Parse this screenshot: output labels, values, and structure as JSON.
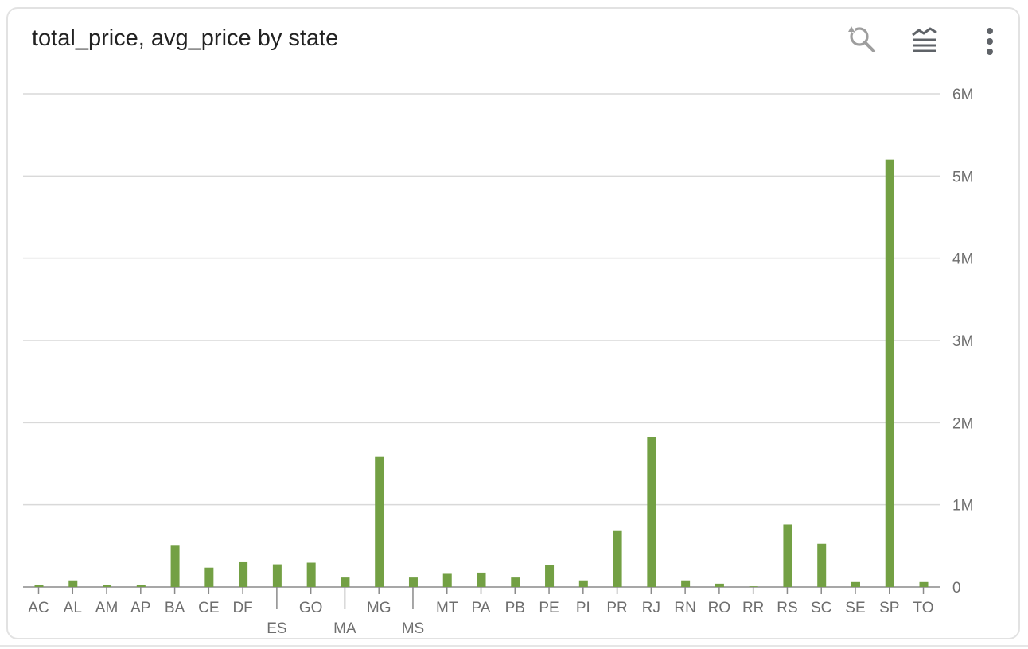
{
  "header": {
    "title": "total_price, avg_price by state"
  },
  "toolbar": {
    "icons": [
      "zoom-reset-icon",
      "layers-icon",
      "more-vert-icon"
    ]
  },
  "colors": {
    "bar": "#73a044",
    "grid": "#d9d9d9",
    "axis": "#8a8a8a",
    "tick_text": "#6e6e6e",
    "icon": "#5f6368"
  },
  "chart_data": {
    "type": "bar",
    "title": "total_price, avg_price by state",
    "xlabel": "",
    "ylabel": "",
    "y_axis_position": "right",
    "grid": true,
    "ylim": [
      0,
      6000000
    ],
    "yticks": [
      0,
      1000000,
      2000000,
      3000000,
      4000000,
      5000000,
      6000000
    ],
    "ytick_labels": [
      "0",
      "1M",
      "2M",
      "3M",
      "4M",
      "5M",
      "6M"
    ],
    "categories": [
      "AC",
      "AL",
      "AM",
      "AP",
      "BA",
      "CE",
      "DF",
      "ES",
      "GO",
      "MA",
      "MG",
      "MS",
      "MT",
      "PA",
      "PB",
      "PE",
      "PI",
      "PR",
      "RJ",
      "RN",
      "RO",
      "RR",
      "RS",
      "SC",
      "SE",
      "SP",
      "TO"
    ],
    "series": [
      {
        "values": [
          20000,
          80000,
          20000,
          20000,
          510000,
          235000,
          310000,
          275000,
          295000,
          115000,
          1590000,
          115000,
          160000,
          175000,
          115000,
          270000,
          80000,
          680000,
          1820000,
          80000,
          40000,
          8000,
          760000,
          525000,
          60000,
          5200000,
          60000
        ]
      }
    ]
  }
}
